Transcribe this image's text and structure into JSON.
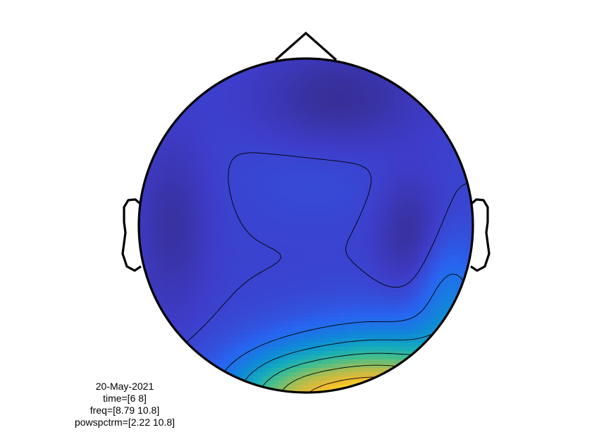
{
  "chart_data": {
    "type": "heatmap",
    "subtype": "topoplot",
    "colormap": "parula",
    "color_range": [
      2.22,
      10.8
    ],
    "contour_levels": [
      3.45,
      4.67,
      5.9,
      7.12,
      8.35,
      9.57
    ],
    "legend": "none",
    "grid": false,
    "annotation": {
      "date": "20-May-2021",
      "time": "time=[6 8]",
      "freq": "freq=[8.79 10.8]",
      "powspctrm": "powspctrm=[2.22 10.8]"
    }
  },
  "colors": {
    "outline": "#000000",
    "contour": "#000000",
    "background": "#ffffff"
  }
}
